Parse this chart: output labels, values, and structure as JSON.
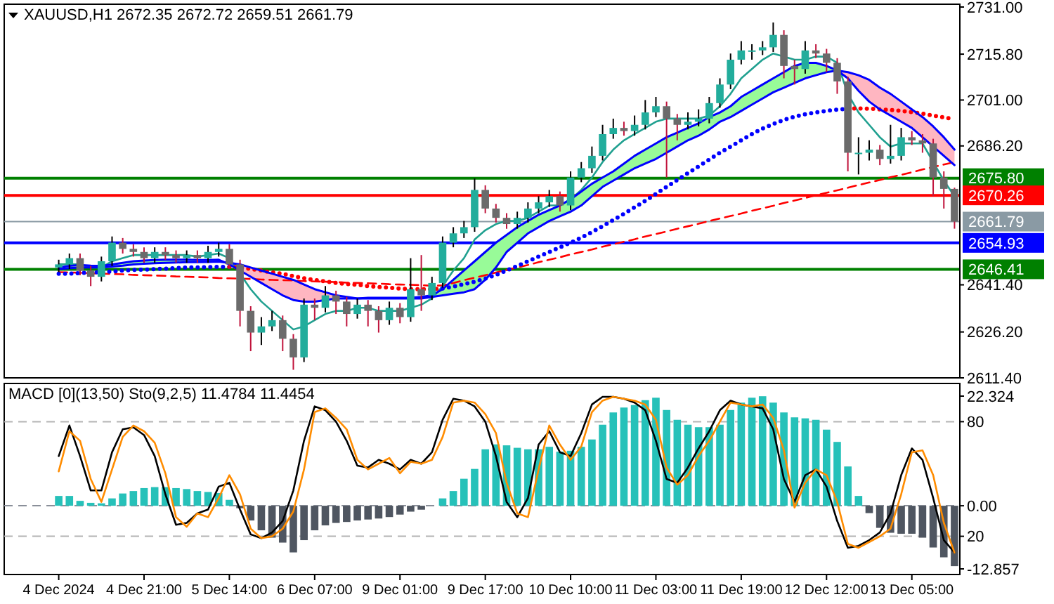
{
  "chart_data": [
    {
      "type": "candlestick",
      "title": "XAUUSD,H1 2672.35 2672.72 2659.51 2661.79",
      "ohlc": [
        [
          2647,
          2649.5,
          2645.5,
          2648
        ],
        [
          2648,
          2651.5,
          2646.5,
          2650
        ],
        [
          2650,
          2651.5,
          2644.5,
          2646
        ],
        [
          2646,
          2647.5,
          2641,
          2644
        ],
        [
          2644,
          2650.5,
          2642.5,
          2649
        ],
        [
          2649,
          2657,
          2647.5,
          2655
        ],
        [
          2655,
          2656.5,
          2651.5,
          2653
        ],
        [
          2653,
          2654.5,
          2650.5,
          2652
        ],
        [
          2652,
          2653.5,
          2648.5,
          2650
        ],
        [
          2650,
          2653.5,
          2648.5,
          2652
        ],
        [
          2652,
          2653.5,
          2649.5,
          2651
        ],
        [
          2651,
          2652.5,
          2648.5,
          2650
        ],
        [
          2650,
          2652.5,
          2648.5,
          2651
        ],
        [
          2651,
          2652.5,
          2648.5,
          2650
        ],
        [
          2650,
          2654,
          2648.5,
          2652
        ],
        [
          2652,
          2655,
          2650.5,
          2653
        ],
        [
          2653,
          2654.5,
          2646.5,
          2648
        ],
        [
          2648,
          2649.5,
          2628,
          2633
        ],
        [
          2633,
          2634.5,
          2620,
          2626
        ],
        [
          2626,
          2631,
          2622,
          2628
        ],
        [
          2628,
          2633,
          2626.5,
          2630
        ],
        [
          2630,
          2631.5,
          2620,
          2624
        ],
        [
          2624,
          2625.5,
          2614,
          2618
        ],
        [
          2618,
          2637,
          2616.5,
          2635
        ],
        [
          2635,
          2637,
          2630,
          2634
        ],
        [
          2634,
          2641,
          2632.5,
          2638
        ],
        [
          2638,
          2639.5,
          2632,
          2636
        ],
        [
          2636,
          2637.5,
          2628,
          2632
        ],
        [
          2632,
          2637,
          2630.5,
          2635
        ],
        [
          2635,
          2636.5,
          2628,
          2633
        ],
        [
          2633,
          2634.5,
          2626,
          2630
        ],
        [
          2630,
          2636,
          2628.5,
          2634
        ],
        [
          2634,
          2635.5,
          2629,
          2631
        ],
        [
          2631,
          2650,
          2629.5,
          2640
        ],
        [
          2640,
          2651,
          2633,
          2638
        ],
        [
          2638,
          2644,
          2636.5,
          2642
        ],
        [
          2642,
          2657,
          2640.5,
          2655
        ],
        [
          2655,
          2660,
          2653.5,
          2658
        ],
        [
          2658,
          2662,
          2656.5,
          2660
        ],
        [
          2660,
          2675.7,
          2658.5,
          2672
        ],
        [
          2672,
          2673.5,
          2664.5,
          2666
        ],
        [
          2666,
          2667.5,
          2661.5,
          2663
        ],
        [
          2663,
          2664.5,
          2659.5,
          2661
        ],
        [
          2661,
          2665,
          2659.5,
          2663
        ],
        [
          2663,
          2668,
          2661.5,
          2666
        ],
        [
          2666,
          2670,
          2664.5,
          2668
        ],
        [
          2668,
          2672,
          2666.5,
          2670
        ],
        [
          2670,
          2671.5,
          2665,
          2667
        ],
        [
          2667,
          2678,
          2665.5,
          2676
        ],
        [
          2676,
          2681,
          2674.5,
          2679
        ],
        [
          2679,
          2686,
          2677.5,
          2683
        ],
        [
          2683,
          2693,
          2681.5,
          2690
        ],
        [
          2690,
          2695,
          2688.5,
          2692
        ],
        [
          2692,
          2694,
          2689.5,
          2691
        ],
        [
          2691,
          2696,
          2689.5,
          2693
        ],
        [
          2693,
          2701,
          2691.5,
          2697
        ],
        [
          2697,
          2702,
          2695.5,
          2699
        ],
        [
          2699,
          2700.5,
          2676,
          2695
        ],
        [
          2695,
          2696.5,
          2688,
          2693
        ],
        [
          2693,
          2697,
          2691.5,
          2694
        ],
        [
          2694,
          2698,
          2692.5,
          2695
        ],
        [
          2695,
          2702,
          2693.5,
          2700
        ],
        [
          2700,
          2708,
          2698.5,
          2706
        ],
        [
          2706,
          2716,
          2704.5,
          2714
        ],
        [
          2714,
          2720,
          2712.5,
          2717
        ],
        [
          2717,
          2719,
          2714,
          2717
        ],
        [
          2717,
          2720,
          2715.5,
          2718
        ],
        [
          2718,
          2726,
          2716.5,
          2722
        ],
        [
          2722,
          2723.5,
          2708,
          2712
        ],
        [
          2712,
          2714,
          2706,
          2711
        ],
        [
          2711,
          2720,
          2709.5,
          2717
        ],
        [
          2717,
          2719,
          2714.5,
          2716
        ],
        [
          2716,
          2717.5,
          2710,
          2713
        ],
        [
          2713,
          2714.5,
          2703,
          2707
        ],
        [
          2707,
          2708.5,
          2678,
          2684
        ],
        [
          2684,
          2689,
          2677,
          2684
        ],
        [
          2684,
          2688,
          2681.5,
          2685
        ],
        [
          2685,
          2686.5,
          2680,
          2682
        ],
        [
          2682,
          2693,
          2680.5,
          2683
        ],
        [
          2683,
          2692,
          2681.5,
          2689
        ],
        [
          2689,
          2691,
          2686.5,
          2688
        ],
        [
          2688,
          2690,
          2684,
          2687
        ],
        [
          2687,
          2688.5,
          2670,
          2676
        ],
        [
          2676,
          2678,
          2666,
          2672.35
        ],
        [
          2672.35,
          2672.72,
          2659.51,
          2661.79
        ]
      ],
      "series": [
        {
          "type": "line",
          "line_style": "dashed",
          "color": "#ff0000",
          "values": [
            2645.5,
            2645.4,
            2645.3,
            2645.1,
            2645,
            2644.9,
            2644.8,
            2644.6,
            2644.5,
            2644.4,
            2644.3,
            2644.1,
            2644,
            2643.9,
            2643.8,
            2643.6,
            2643.5,
            2643.4,
            2643.3,
            2643.1,
            2643,
            2642.9,
            2642.8,
            2642.6,
            2642.5,
            2642.4,
            2642.3,
            2642.1,
            2642,
            2641.9,
            2641.8,
            2641.6,
            2641.5,
            2641.4,
            2641.3,
            2641.1,
            2641.2,
            2642,
            2642.9,
            2643.7,
            2644.5,
            2645.4,
            2646.2,
            2647,
            2647.8,
            2648.7,
            2649.5,
            2650.3,
            2651.2,
            2652,
            2652.8,
            2653.7,
            2654.5,
            2655.3,
            2656.1,
            2657,
            2657.8,
            2658.6,
            2659.5,
            2660.3,
            2661.1,
            2662,
            2662.8,
            2663.6,
            2664.4,
            2665.3,
            2666.1,
            2666.9,
            2667.8,
            2668.6,
            2669.4,
            2670.3,
            2671.1,
            2671.9,
            2672.7,
            2673.6,
            2674.4,
            2675.2,
            2676.1,
            2676.9,
            2677.7,
            2678.6,
            2679.4,
            2680.2,
            2681
          ]
        },
        {
          "type": "line",
          "color": "#0000ff",
          "lower": [
            2646.5,
            2646.8,
            2647,
            2647,
            2647,
            2647.3,
            2647.6,
            2648,
            2648.2,
            2648.4,
            2648.5,
            2648.6,
            2648.7,
            2648.7,
            2648.8,
            2648.9,
            2648.5,
            null,
            null,
            null,
            null,
            null,
            null,
            null,
            null,
            null,
            null,
            null,
            null,
            null,
            null,
            null,
            null,
            null,
            2637,
            2637.5,
            2638,
            2638.5,
            2639,
            2640,
            2643,
            2647,
            2652,
            2655,
            2658,
            2660,
            2662,
            2663.5,
            2665,
            2667,
            2670,
            2673,
            2675,
            2677,
            2679,
            2680.5,
            2682,
            2684,
            2686,
            2688,
            2689.5,
            2691.5,
            2694,
            2695.5,
            2697.5,
            2699.5,
            2701.5,
            2703.5,
            2705,
            2706.5,
            2708,
            2709,
            2710,
            2710.5,
            null,
            null,
            null,
            null,
            null,
            null,
            null,
            null,
            null,
            null,
            null
          ],
          "upper": [
            2647,
            2647.5,
            2647.8,
            2647.6,
            2647.5,
            2648,
            2648.5,
            2649,
            2649.2,
            2649.4,
            2649.5,
            2649.5,
            2649.5,
            2649.4,
            2649.4,
            2649.5,
            2648,
            null,
            null,
            null,
            null,
            null,
            null,
            null,
            null,
            null,
            null,
            null,
            null,
            null,
            null,
            null,
            null,
            null,
            2637.5,
            2638,
            2640,
            2643,
            2646,
            2649,
            2652,
            2655,
            2657.5,
            2660,
            2662,
            2664,
            2665.5,
            2667,
            2669,
            2671.5,
            2674,
            2676,
            2678,
            2680.5,
            2683,
            2685,
            2687,
            2689,
            2690.5,
            2692,
            2693.5,
            2695.5,
            2697,
            2699,
            2702,
            2704,
            2706,
            2708,
            2710,
            2712,
            2713,
            2713,
            2712,
            2710.5,
            null,
            null,
            null,
            null,
            null,
            null,
            null,
            null,
            null,
            null,
            null
          ],
          "values": [
            2647,
            2647.5,
            2647.8,
            2647.6,
            2647.5,
            2648,
            2648.5,
            2649,
            2649.2,
            2649.4,
            2649.5,
            2649.5,
            2649.5,
            2649.4,
            2649.4,
            2649.5,
            2648,
            2646,
            2644,
            2642,
            2640,
            2638,
            2636.5,
            2636,
            2636,
            2636.5,
            2637,
            2637,
            2637,
            2637.2,
            2637.2,
            2637.2,
            2637.2,
            2637.2,
            2637.5,
            2638,
            2640,
            2643,
            2646,
            2649,
            2652,
            2655,
            2657.5,
            2660,
            2662,
            2664,
            2665.5,
            2667,
            2669,
            2671.5,
            2674,
            2676,
            2678,
            2680.5,
            2683,
            2685,
            2687,
            2689,
            2690.5,
            2692,
            2693.5,
            2695.5,
            2697,
            2699,
            2702,
            2704,
            2706,
            2708,
            2710,
            2712,
            2713,
            2713,
            2712,
            2710.5,
            2708,
            2704,
            2700.5,
            2698,
            2696,
            2694,
            2692,
            2689,
            2686,
            2683,
            2680
          ]
        },
        {
          "type": "line",
          "color": "#0000ff",
          "lower": [
            null,
            null,
            null,
            null,
            null,
            null,
            null,
            null,
            null,
            null,
            null,
            null,
            null,
            null,
            null,
            null,
            2648,
            2646,
            2644,
            2642,
            2640,
            2638,
            2636.5,
            2636,
            2636,
            2636.5,
            2637,
            2637,
            2637,
            2637.2,
            2637.2,
            2637.2,
            2637.2,
            2637.2,
            2637.5,
            null,
            null,
            null,
            null,
            null,
            null,
            null,
            null,
            null,
            null,
            null,
            null,
            null,
            null,
            null,
            null,
            null,
            null,
            null,
            null,
            null,
            null,
            null,
            null,
            null,
            null,
            null,
            null,
            null,
            null,
            null,
            null,
            null,
            null,
            null,
            null,
            null,
            null,
            2710.5,
            2708,
            2704,
            2700.5,
            2698,
            2696,
            2694,
            2692,
            2689,
            2686,
            2683,
            2680
          ],
          "upper": [
            null,
            null,
            null,
            null,
            null,
            null,
            null,
            null,
            null,
            null,
            null,
            null,
            null,
            null,
            null,
            null,
            2648.5,
            2648,
            2647,
            2646,
            2645,
            2644,
            2643,
            2641.5,
            2640,
            2639,
            2638,
            2637.5,
            2637,
            2637,
            2637,
            2637,
            2637,
            2637,
            2637,
            null,
            null,
            null,
            null,
            null,
            null,
            null,
            null,
            null,
            null,
            null,
            null,
            null,
            null,
            null,
            null,
            null,
            null,
            null,
            null,
            null,
            null,
            null,
            null,
            null,
            null,
            null,
            null,
            null,
            null,
            null,
            null,
            null,
            null,
            null,
            null,
            null,
            null,
            2710.5,
            2710,
            2709,
            2707.5,
            2705,
            2703,
            2700.5,
            2698,
            2695.5,
            2692.5,
            2689,
            2685
          ],
          "values": [
            2646.5,
            2646.8,
            2647,
            2647,
            2647,
            2647.3,
            2647.6,
            2648,
            2648.2,
            2648.4,
            2648.5,
            2648.6,
            2648.7,
            2648.7,
            2648.8,
            2648.9,
            2648.5,
            2648,
            2647,
            2646,
            2645,
            2644,
            2643,
            2641.5,
            2640,
            2639,
            2638,
            2637.5,
            2637,
            2637,
            2637,
            2637,
            2637,
            2637,
            2637,
            2637.5,
            2638,
            2638.5,
            2639,
            2640,
            2643,
            2647,
            2652,
            2655,
            2658,
            2660,
            2662,
            2663.5,
            2665,
            2667,
            2670,
            2673,
            2675,
            2677,
            2679,
            2680.5,
            2682,
            2684,
            2686,
            2688,
            2689.5,
            2691.5,
            2694,
            2695.5,
            2697.5,
            2699.5,
            2701.5,
            2703.5,
            2705,
            2706.5,
            2708,
            2709,
            2710,
            2710.5,
            2710,
            2709,
            2707.5,
            2705,
            2703,
            2700.5,
            2698,
            2695.5,
            2692.5,
            2689,
            2685
          ]
        },
        {
          "type": "line",
          "color": "#20a090",
          "values": [
            2648,
            2648,
            2648,
            2647,
            2647,
            2649,
            2650,
            2651,
            2651,
            2651,
            2651,
            2651,
            2651,
            2650.5,
            2651,
            2651.5,
            2650,
            2645,
            2640,
            2636,
            2633,
            2630,
            2627,
            2628,
            2630,
            2632,
            2633,
            2633,
            2634,
            2634,
            2633,
            2633,
            2633,
            2634,
            2635,
            2637,
            2641,
            2646,
            2650,
            2656,
            2659,
            2661,
            2662,
            2662,
            2663,
            2665,
            2667,
            2667,
            2669,
            2672,
            2676,
            2681,
            2685,
            2688,
            2690,
            2692,
            2694,
            2695,
            2695,
            2695,
            2695,
            2696,
            2699,
            2703,
            2708,
            2711,
            2714,
            2716,
            2715,
            2714,
            2714,
            2715,
            2715,
            2713,
            2703,
            2697,
            2693,
            2689,
            2686,
            2687,
            2687,
            2687,
            2681,
            2675,
            2670
          ]
        },
        {
          "type": "line",
          "line_style": "dotted",
          "color": "#0000ff",
          "values": [
            2645,
            2645,
            2645.2,
            2645.3,
            2645.5,
            2645.7,
            2646,
            2646.2,
            2646.3,
            2646.5,
            2646.6,
            2646.8,
            2647,
            2647,
            2647.1,
            2647.2,
            2647.2,
            null,
            null,
            null,
            null,
            null,
            null,
            null,
            null,
            null,
            null,
            null,
            null,
            null,
            null,
            null,
            null,
            null,
            null,
            null,
            2640.2,
            2640.8,
            2641.6,
            2642.4,
            2643.4,
            2644.6,
            2646,
            2647.5,
            2649,
            2650.5,
            2652,
            2653.5,
            2655,
            2656.6,
            2658.4,
            2660.3,
            2662.3,
            2664.3,
            2666.4,
            2668.5,
            2670.7,
            2673,
            2675.2,
            2677.4,
            2679.6,
            2681.8,
            2684,
            2686,
            2688,
            2690,
            2691.8,
            2693.3,
            2694.6,
            2695.6,
            2696.4,
            2697,
            2697.5,
            2697.9,
            2698.2,
            null,
            null,
            null,
            null,
            null,
            null,
            null,
            null,
            null,
            null
          ]
        },
        {
          "type": "line",
          "line_style": "dotted",
          "color": "#ff0000",
          "values": [
            null,
            null,
            null,
            null,
            null,
            null,
            null,
            null,
            null,
            null,
            null,
            null,
            null,
            null,
            null,
            null,
            2647.2,
            2647,
            2646.5,
            2646,
            2645.4,
            2645,
            2644.2,
            2643.5,
            2643,
            2642.5,
            2642,
            2641.7,
            2641.4,
            2641,
            2640.7,
            2640.5,
            2640.2,
            2640,
            2640,
            2640,
            2640.2,
            null,
            null,
            null,
            null,
            null,
            null,
            null,
            null,
            null,
            null,
            null,
            null,
            null,
            null,
            null,
            null,
            null,
            null,
            null,
            null,
            null,
            null,
            null,
            null,
            null,
            null,
            null,
            null,
            null,
            null,
            null,
            null,
            null,
            null,
            null,
            null,
            null,
            2698.2,
            2698.3,
            2698.2,
            2698,
            2697.8,
            2697.5,
            2697.1,
            2696.6,
            2696,
            2695.4,
            2694.8
          ]
        }
      ],
      "ylim": [
        2611.4,
        2731.9
      ],
      "yticks": [
        {
          "value": 2731,
          "label": "2731.00"
        },
        {
          "value": 2715.8,
          "label": "2715.80"
        },
        {
          "value": 2701,
          "label": "2701.00"
        },
        {
          "value": 2686.2,
          "label": "2686.20"
        },
        {
          "value": 2641.4,
          "label": "2641.40"
        },
        {
          "value": 2626.2,
          "label": "2626.20"
        },
        {
          "value": 2611.4,
          "label": "2611.40"
        }
      ],
      "ref_lines": [
        {
          "axis": "y",
          "value": 2675.8,
          "label": "2675.80",
          "color": "#008000"
        },
        {
          "axis": "y",
          "value": 2670.26,
          "label": "2670.26",
          "color": "#ff0000"
        },
        {
          "axis": "y",
          "value": 2661.79,
          "label": "2661.79",
          "color": "#8a9aa4"
        },
        {
          "axis": "y",
          "value": 2654.93,
          "label": "2654.93",
          "color": "#0000ff"
        },
        {
          "axis": "y",
          "value": 2646.41,
          "label": "2646.41",
          "color": "#008000"
        }
      ],
      "tick_labels": "y"
    },
    {
      "type": "bar",
      "title": "MACD [0](13,50) Sto(9,2,5) 11.4784 11.4454",
      "categories": [
        "4 Dec 2024",
        null,
        null,
        null,
        null,
        null,
        null,
        null,
        "4 Dec 21:00",
        null,
        null,
        null,
        null,
        null,
        null,
        null,
        "5 Dec 14:00",
        null,
        null,
        null,
        null,
        null,
        null,
        null,
        "6 Dec 07:00",
        null,
        null,
        null,
        null,
        null,
        null,
        null,
        "9 Dec 01:00",
        null,
        null,
        null,
        null,
        null,
        null,
        null,
        "9 Dec 17:00",
        null,
        null,
        null,
        null,
        null,
        null,
        null,
        "10 Dec 10:00",
        null,
        null,
        null,
        null,
        null,
        null,
        null,
        "11 Dec 03:00",
        null,
        null,
        null,
        null,
        null,
        null,
        null,
        "11 Dec 19:00",
        null,
        null,
        null,
        null,
        null,
        null,
        null,
        "12 Dec 12:00",
        null,
        null,
        null,
        null,
        null,
        null,
        null,
        "13 Dec 05:00",
        null,
        null,
        null,
        null
      ],
      "series": [
        {
          "type": "bar",
          "values": [
            2,
            2,
            1,
            0.6,
            0.5,
            1.5,
            2.5,
            3,
            3.6,
            3.8,
            3.8,
            3.6,
            3.4,
            3,
            2.8,
            2.6,
            1.2,
            -0.5,
            -3,
            -5,
            -6.5,
            -7.5,
            -9.5,
            -7,
            -5,
            -4,
            -3.5,
            -3.3,
            -3,
            -2.8,
            -2.6,
            -2.3,
            -1.8,
            -1.2,
            -0.8,
            null,
            1.5,
            3,
            5.5,
            7.5,
            11.5,
            12.5,
            12.3,
            11.8,
            11.5,
            11.5,
            12,
            11,
            11.2,
            12,
            13.5,
            16.5,
            19,
            20,
            20.5,
            21.5,
            22,
            19.5,
            17.5,
            16.5,
            16,
            16,
            16.5,
            19.5,
            21,
            22,
            22.3,
            21,
            19,
            18,
            17.8,
            17.5,
            15.5,
            13,
            8,
            2,
            -1.5,
            -4.5,
            -5.5,
            -5.7,
            -5.7,
            -6.5,
            -8.5,
            -10.5,
            -12.3
          ],
          "colors": [
            "#26c1b9",
            "#26c1b9",
            "#26c1b9",
            "#26c1b9",
            "#26c1b9",
            "#26c1b9",
            "#26c1b9",
            "#26c1b9",
            "#26c1b9",
            "#26c1b9",
            "#26c1b9",
            "#26c1b9",
            "#26c1b9",
            "#26c1b9",
            "#26c1b9",
            "#26c1b9",
            "#26c1b9",
            "#4f5661",
            "#4f5661",
            "#4f5661",
            "#4f5661",
            "#4f5661",
            "#4f5661",
            "#4f5661",
            "#4f5661",
            "#4f5661",
            "#4f5661",
            "#4f5661",
            "#4f5661",
            "#4f5661",
            "#4f5661",
            "#4f5661",
            "#4f5661",
            "#4f5661",
            "#4f5661",
            null,
            "#26c1b9",
            "#26c1b9",
            "#26c1b9",
            "#26c1b9",
            "#26c1b9",
            "#26c1b9",
            "#26c1b9",
            "#26c1b9",
            "#26c1b9",
            "#26c1b9",
            "#26c1b9",
            "#26c1b9",
            "#26c1b9",
            "#26c1b9",
            "#26c1b9",
            "#26c1b9",
            "#26c1b9",
            "#26c1b9",
            "#26c1b9",
            "#26c1b9",
            "#26c1b9",
            "#26c1b9",
            "#26c1b9",
            "#26c1b9",
            "#26c1b9",
            "#26c1b9",
            "#26c1b9",
            "#26c1b9",
            "#26c1b9",
            "#26c1b9",
            "#26c1b9",
            "#26c1b9",
            "#26c1b9",
            "#26c1b9",
            "#26c1b9",
            "#26c1b9",
            "#26c1b9",
            "#26c1b9",
            "#26c1b9",
            "#26c1b9",
            "#4f5661",
            "#4f5661",
            "#4f5661",
            "#4f5661",
            "#4f5661",
            "#4f5661",
            "#4f5661",
            "#4f5661",
            "#4f5661"
          ]
        },
        {
          "type": "line",
          "axis": "y2",
          "color": "#000000",
          "values": [
            62,
            78,
            62,
            44,
            44,
            64,
            76,
            77,
            73,
            62,
            42,
            26,
            27,
            32,
            34,
            46,
            48,
            34,
            21,
            19,
            22,
            28,
            44,
            70,
            88,
            86,
            80,
            70,
            57,
            56,
            60,
            58,
            55,
            60,
            58,
            64,
            81,
            92,
            91,
            88,
            80,
            62,
            38,
            30,
            40,
            68,
            75,
            64,
            62,
            74,
            89,
            93,
            93,
            92,
            90,
            86,
            70,
            50,
            48,
            56,
            66,
            75,
            86,
            91,
            89,
            88,
            87,
            76,
            50,
            38,
            52,
            55,
            46,
            28,
            14,
            15,
            18,
            22,
            32,
            52,
            66,
            60,
            40,
            18,
            11.4784
          ]
        },
        {
          "type": "line",
          "axis": "y2",
          "color": "#ff8c00",
          "values": [
            54,
            75,
            70,
            50,
            38,
            55,
            72,
            78,
            75,
            69,
            53,
            30,
            25,
            32,
            30,
            40,
            52,
            42,
            24,
            19,
            20,
            24,
            33,
            55,
            85,
            87,
            82,
            76,
            60,
            55,
            58,
            61,
            53,
            59,
            58,
            60,
            72,
            90,
            91,
            90,
            84,
            74,
            48,
            32,
            30,
            55,
            78,
            68,
            60,
            67,
            85,
            91,
            93,
            92,
            91,
            89,
            81,
            56,
            47,
            52,
            62,
            70,
            80,
            90,
            89,
            88,
            89,
            82,
            65,
            35,
            48,
            55,
            52,
            38,
            16,
            14,
            17,
            20,
            24,
            42,
            64,
            65,
            52,
            27,
            11.4454
          ]
        }
      ],
      "ylim": [
        -14,
        24.9
      ],
      "yticks": [
        {
          "value": 22.324,
          "label": "22.324"
        },
        {
          "value": 0,
          "label": "0.00"
        },
        {
          "value": -12.857,
          "label": "-12.857"
        }
      ],
      "y2lim": [
        0,
        100
      ],
      "y2ticks": [
        80,
        20
      ],
      "ref_lines": [
        {
          "axis": "y2",
          "value": 80,
          "color": "#b4b4b4",
          "line_style": "dashed"
        },
        {
          "axis": "y2",
          "value": 20,
          "color": "#b4b4b4",
          "line_style": "dashed"
        },
        {
          "axis": "y",
          "value": 0,
          "color": "#8a8f99",
          "line_style": "dashed"
        }
      ]
    }
  ]
}
